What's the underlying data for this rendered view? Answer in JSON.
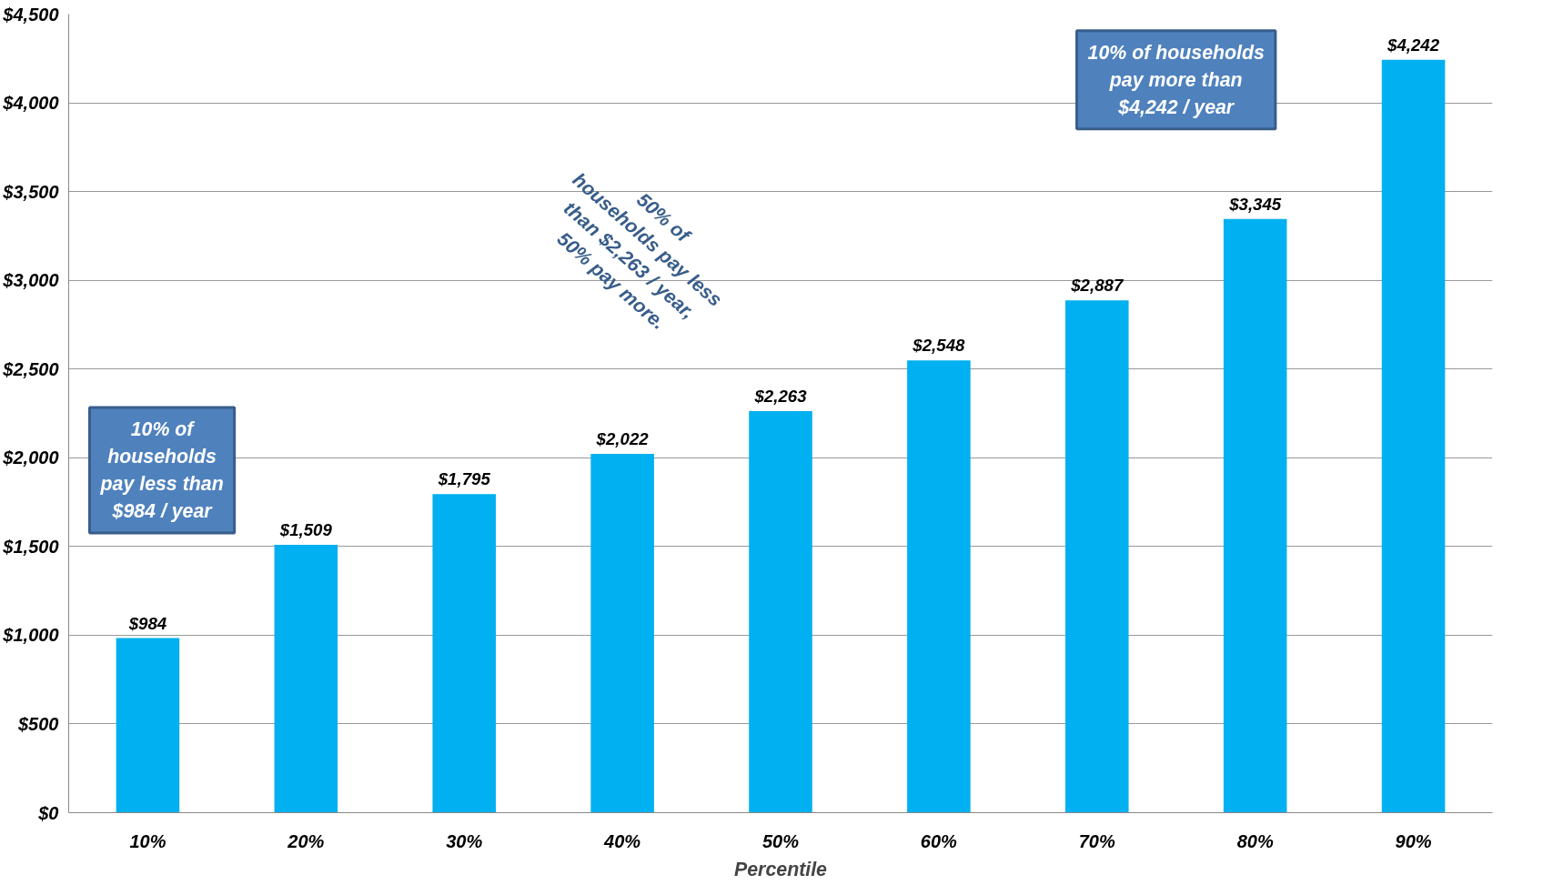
{
  "chart_data": {
    "type": "bar",
    "xlabel": "Percentile",
    "categories": [
      "10%",
      "20%",
      "30%",
      "40%",
      "50%",
      "60%",
      "70%",
      "80%",
      "90%"
    ],
    "values": [
      984,
      1509,
      1795,
      2022,
      2263,
      2548,
      2887,
      3345,
      4242
    ],
    "color": "#00b0f0",
    "value_labels": [
      "$984",
      "$1,509",
      "$1,795",
      "$2,022",
      "$2,263",
      "$2,548",
      "$2,887",
      "$3,345",
      "$4,242"
    ],
    "ylim": [
      0,
      4500
    ],
    "yticks": [
      {
        "value": 0,
        "label": "$0"
      },
      {
        "value": 500,
        "label": "$500"
      },
      {
        "value": 1000,
        "label": "$1,000"
      },
      {
        "value": 1500,
        "label": "$1,500"
      },
      {
        "value": 2000,
        "label": "$2,000"
      },
      {
        "value": 2500,
        "label": "$2,500"
      },
      {
        "value": 3000,
        "label": "$3,000"
      },
      {
        "value": 3500,
        "label": "$3,500"
      },
      {
        "value": 4000,
        "label": "$4,000"
      },
      {
        "value": 4500,
        "label": "$4,500"
      }
    ],
    "grid": "y",
    "annotations": [
      "10% of\nhouseholds\npay less than\n$984 / year",
      "50%  of\nhouseholds pay less\nthan $2,263 / year,\n50% pay more.",
      "10% of households\npay more than\n$4,242 / year"
    ]
  }
}
